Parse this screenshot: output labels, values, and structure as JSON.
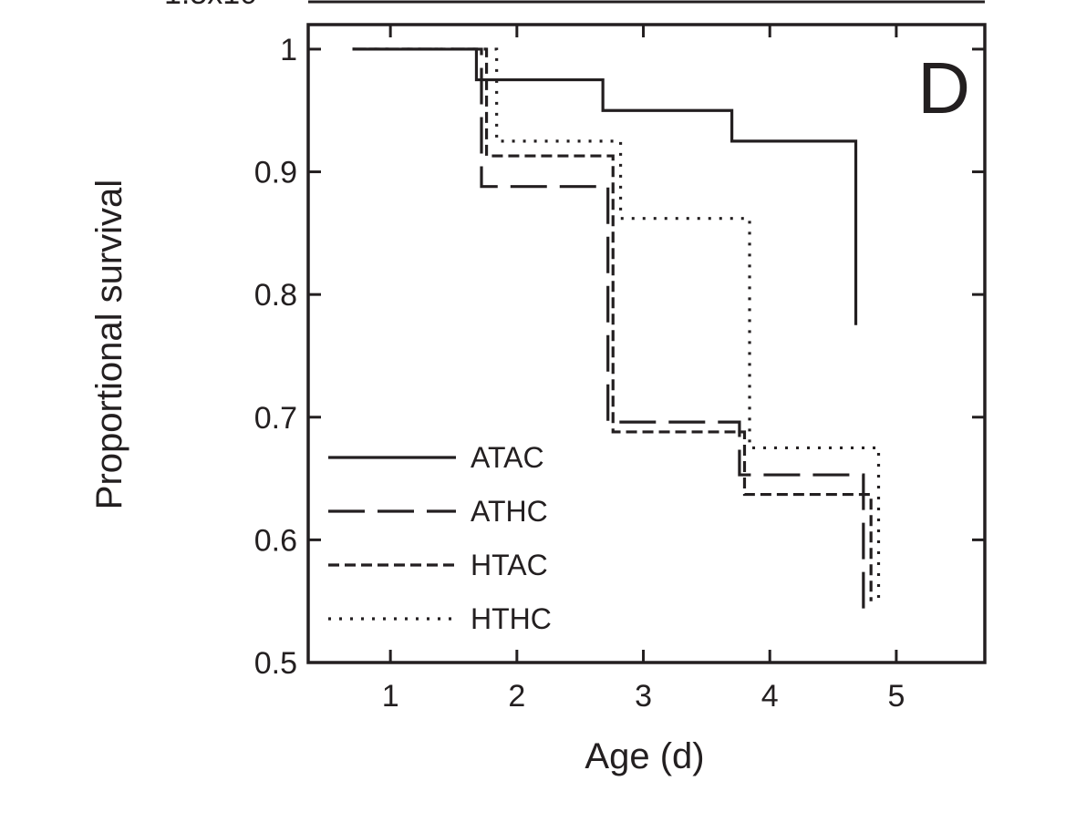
{
  "top_edge_text": "1.5x10",
  "chart_data": {
    "type": "line",
    "step": "post",
    "title": "",
    "panel_label": "D",
    "xlabel": "Age (d)",
    "ylabel": "Proportional survival",
    "xlim": [
      0.35,
      5.7
    ],
    "ylim": [
      0.5,
      1.02
    ],
    "x_ticks": [
      1,
      2,
      3,
      4,
      5
    ],
    "x_tick_labels": [
      "1",
      "2",
      "3",
      "4",
      "5"
    ],
    "y_ticks": [
      0.5,
      0.6,
      0.7,
      0.8,
      0.9,
      1.0
    ],
    "y_tick_labels": [
      "0.5",
      "0.6",
      "0.7",
      "0.8",
      "0.9",
      "1"
    ],
    "grid": false,
    "legend_position": "bottom-left",
    "series": [
      {
        "name": "ATAC",
        "dash": "solid",
        "x": [
          0.7,
          1.68,
          2.68,
          3.7,
          4.68,
          4.68
        ],
        "y": [
          1.0,
          0.975,
          0.95,
          0.925,
          0.925,
          0.775
        ]
      },
      {
        "name": "ATHC",
        "dash": "long-dash",
        "x": [
          0.7,
          1.72,
          2.72,
          3.76,
          4.74,
          4.74
        ],
        "y": [
          1.0,
          0.888,
          0.696,
          0.653,
          0.653,
          0.543
        ]
      },
      {
        "name": "HTAC",
        "dash": "dash",
        "x": [
          0.7,
          1.76,
          2.76,
          3.8,
          4.8,
          4.8
        ],
        "y": [
          1.0,
          0.913,
          0.688,
          0.637,
          0.637,
          0.55
        ]
      },
      {
        "name": "HTHC",
        "dash": "dot",
        "x": [
          0.7,
          1.84,
          2.82,
          3.84,
          4.86,
          4.86
        ],
        "y": [
          1.0,
          0.925,
          0.862,
          0.675,
          0.675,
          0.548
        ]
      }
    ]
  }
}
